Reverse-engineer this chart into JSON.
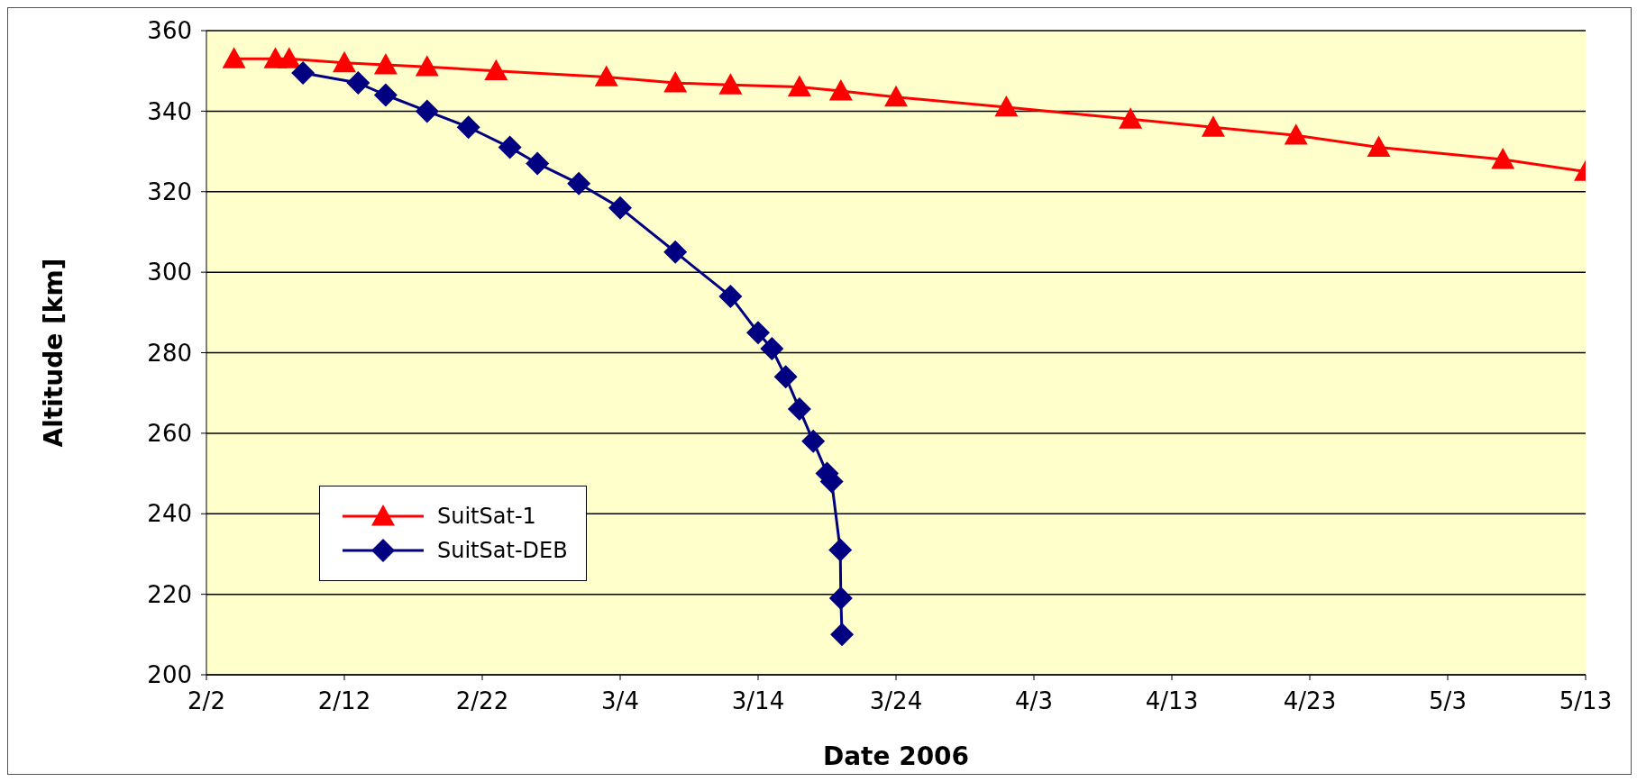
{
  "chart_data": {
    "type": "line",
    "xlabel": "Date 2006",
    "ylabel": "Altitude [km]",
    "xlim": [
      "2006-02-02",
      "2006-05-13"
    ],
    "xticks": [
      {
        "value": "2006-02-02",
        "label": "2/2"
      },
      {
        "value": "2006-02-12",
        "label": "2/12"
      },
      {
        "value": "2006-02-22",
        "label": "2/22"
      },
      {
        "value": "2006-03-04",
        "label": "3/4"
      },
      {
        "value": "2006-03-14",
        "label": "3/14"
      },
      {
        "value": "2006-03-24",
        "label": "3/24"
      },
      {
        "value": "2006-04-03",
        "label": "4/3"
      },
      {
        "value": "2006-04-13",
        "label": "4/13"
      },
      {
        "value": "2006-04-23",
        "label": "4/23"
      },
      {
        "value": "2006-05-03",
        "label": "5/3"
      },
      {
        "value": "2006-05-13",
        "label": "5/13"
      }
    ],
    "ylim": [
      200,
      360
    ],
    "yticks": [
      200,
      220,
      240,
      260,
      280,
      300,
      320,
      340,
      360
    ],
    "grid": "y",
    "legend": "bottom left",
    "series": [
      {
        "name": "SuitSat-1",
        "color": "#ff0000",
        "marker": "triangle",
        "x": [
          "2006-02-04",
          "2006-02-07",
          "2006-02-08",
          "2006-02-12",
          "2006-02-15",
          "2006-02-18",
          "2006-02-23",
          "2006-03-03",
          "2006-03-08",
          "2006-03-12",
          "2006-03-17",
          "2006-03-20",
          "2006-03-24",
          "2006-04-01",
          "2006-04-10",
          "2006-04-16",
          "2006-04-22",
          "2006-04-28",
          "2006-05-07",
          "2006-05-13"
        ],
        "values": [
          353,
          353,
          353,
          352,
          351.5,
          351,
          350,
          348.5,
          347,
          346.5,
          346,
          345,
          343.5,
          341,
          338,
          336,
          334,
          331,
          328,
          325
        ]
      },
      {
        "name": "SuitSat-DEB",
        "color": "#000080",
        "marker": "diamond",
        "x": [
          "2006-02-09",
          "2006-02-13",
          "2006-02-15",
          "2006-02-18",
          "2006-02-21",
          "2006-02-24",
          "2006-02-26",
          "2006-03-01",
          "2006-03-04",
          "2006-03-08",
          "2006-03-12",
          "2006-03-14",
          "2006-03-15",
          "2006-03-16",
          "2006-03-17",
          "2006-03-18",
          "2006-03-19",
          "2006-03-19T08:00",
          "2006-03-19T23:00",
          "2006-03-20",
          "2006-03-20T02:00"
        ],
        "values": [
          349.5,
          347,
          344,
          340,
          336,
          331,
          327,
          322,
          316,
          305,
          294,
          285,
          281,
          274,
          266,
          258,
          250,
          248,
          231,
          219,
          210
        ]
      }
    ]
  }
}
